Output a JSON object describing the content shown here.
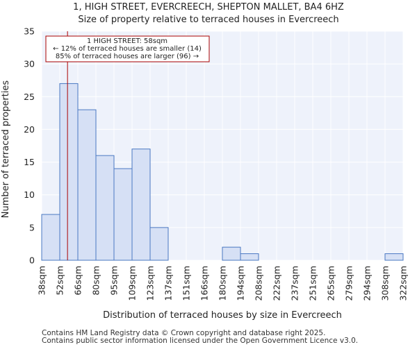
{
  "chart_data": {
    "type": "bar",
    "title_line1": "1, HIGH STREET, EVERCREECH, SHEPTON MALLET, BA4 6HZ",
    "title_line2": "Size of property relative to terraced houses in Evercreech",
    "xlabel": "Distribution of terraced houses by size in Evercreech",
    "ylabel": "Number of terraced properties",
    "bin_edges": [
      "38sqm",
      "52sqm",
      "66sqm",
      "80sqm",
      "95sqm",
      "109sqm",
      "123sqm",
      "137sqm",
      "151sqm",
      "166sqm",
      "180sqm",
      "194sqm",
      "208sqm",
      "222sqm",
      "237sqm",
      "251sqm",
      "265sqm",
      "279sqm",
      "294sqm",
      "308sqm",
      "322sqm"
    ],
    "values": [
      7,
      27,
      23,
      16,
      14,
      17,
      5,
      0,
      0,
      0,
      2,
      1,
      0,
      0,
      0,
      0,
      0,
      0,
      0,
      1
    ],
    "ylim": [
      0,
      35
    ],
    "yticks": [
      0,
      5,
      10,
      15,
      20,
      25,
      30,
      35
    ],
    "grid": true,
    "marker": {
      "value_sqm": 58,
      "color": "#aa0000"
    },
    "annotation": {
      "line1": "1 HIGH STREET: 58sqm",
      "line2": "← 12% of terraced houses are smaller (14)",
      "line3": "85% of terraced houses are larger (96) →"
    },
    "colors": {
      "bar_fill": "#d6e0f5",
      "bar_stroke": "#4a78c2",
      "plot_bg": "#eef2fb",
      "grid": "#ffffff"
    }
  },
  "footer": {
    "line1": "Contains HM Land Registry data © Crown copyright and database right 2025.",
    "line2": "Contains public sector information licensed under the Open Government Licence v3.0."
  }
}
